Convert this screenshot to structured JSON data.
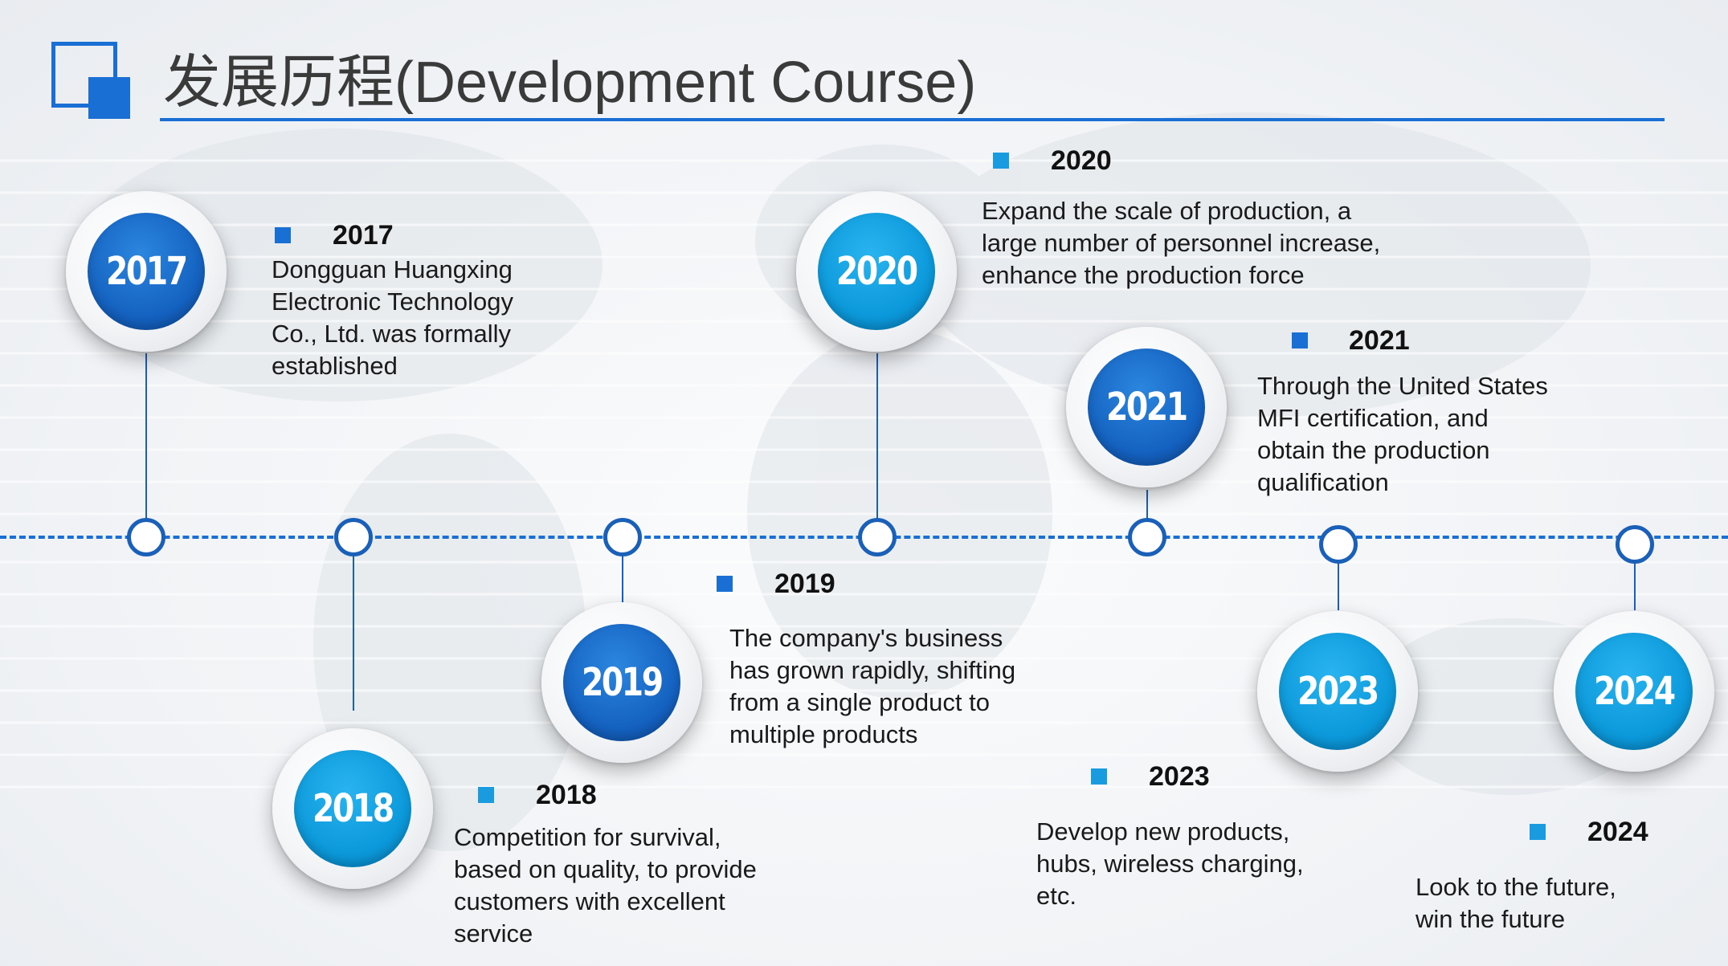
{
  "header": {
    "title": "发展历程(Development Course)"
  },
  "colors": {
    "accent": "#1a6fd4",
    "dark_badge": "#1461c0",
    "light_badge": "#0b98da",
    "title_text": "#3a3a3a"
  },
  "events": [
    {
      "year": "2017",
      "heading": "2017",
      "lines": [
        "Dongguan Huangxing",
        "Electronic Technology",
        "Co., Ltd. was formally",
        "established"
      ]
    },
    {
      "year": "2018",
      "heading": "2018",
      "lines": [
        "Competition for survival,",
        "based on quality, to provide",
        "customers with excellent",
        "service"
      ]
    },
    {
      "year": "2019",
      "heading": "2019",
      "lines": [
        "The company's business",
        "has grown rapidly, shifting",
        "from a single product to",
        "multiple products"
      ]
    },
    {
      "year": "2020",
      "heading": "2020",
      "lines": [
        "Expand the scale of production, a",
        "large number of personnel increase,",
        "enhance the production force"
      ]
    },
    {
      "year": "2021",
      "heading": "2021",
      "lines": [
        "Through the United States",
        "MFI certification, and",
        "obtain the production",
        "qualification"
      ]
    },
    {
      "year": "2023",
      "heading": "2023",
      "lines": [
        "Develop new products,",
        "hubs, wireless charging,",
        "etc."
      ]
    },
    {
      "year": "2024",
      "heading": "2024",
      "lines": [
        "Look to the future,",
        "win the future"
      ]
    }
  ]
}
